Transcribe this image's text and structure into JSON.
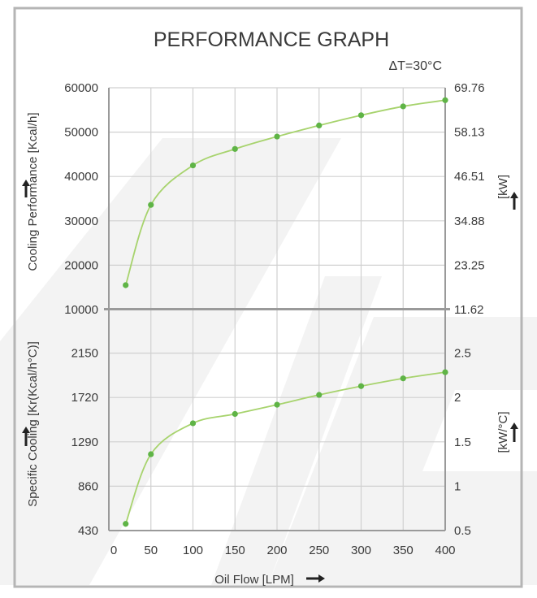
{
  "chart_data": [
    {
      "type": "line",
      "title": "PERFORMANCE GRAPH",
      "subtitle": "ΔT=30°C",
      "ylabel": "Cooling Performance [Kcal/h]",
      "ylabel_right": "[kW]",
      "xlim": [
        0,
        400
      ],
      "ylim": [
        10000,
        60000
      ],
      "y_ticks": [
        "10000",
        "20000",
        "30000",
        "40000",
        "50000",
        "60000"
      ],
      "y_right_ticks": [
        "11.62",
        "23.25",
        "34.88",
        "46.51",
        "58.13",
        "69.76"
      ],
      "grid": true,
      "series": [
        {
          "x": [
            20,
            50,
            100,
            150,
            200,
            250,
            300,
            350,
            400
          ],
          "y": [
            15500,
            33600,
            42500,
            46200,
            49000,
            51500,
            53800,
            55800,
            57200
          ]
        }
      ]
    },
    {
      "type": "line",
      "xlabel": "Oil Flow [LPM]",
      "ylabel": "Specific Cooling [Kr(Kcal/h°C)]",
      "ylabel_right": "[kW/°C]",
      "xlim": [
        0,
        400
      ],
      "ylim": [
        430,
        2580
      ],
      "x_ticks": [
        "0",
        "50",
        "100",
        "150",
        "200",
        "250",
        "300",
        "350",
        "400"
      ],
      "y_ticks": [
        "430",
        "860",
        "1290",
        "1720",
        "2150"
      ],
      "y_right_ticks": [
        "0.5",
        "1",
        "1.5",
        "2",
        "2.5"
      ],
      "grid": true,
      "series": [
        {
          "x": [
            20,
            50,
            100,
            150,
            200,
            250,
            300,
            350,
            400
          ],
          "y": [
            495,
            1170,
            1470,
            1560,
            1650,
            1745,
            1830,
            1905,
            1965
          ]
        }
      ]
    }
  ],
  "colors": {
    "line": "#a7d36d",
    "point": "#5fb446",
    "grid": "#d0d0d0",
    "axis": "#9a9a9a",
    "frame": "#b5b5b5",
    "watermark": "#f3f3f3"
  }
}
